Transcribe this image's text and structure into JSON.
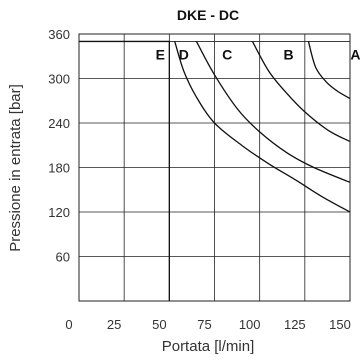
{
  "chart_data": {
    "type": "line",
    "title": "DKE - DC",
    "xlabel": "Portata [l/min]",
    "ylabel": "Pressione in entrata [bar]",
    "xlim": [
      0,
      150
    ],
    "ylim": [
      0,
      360
    ],
    "x_ticks": [
      0,
      25,
      50,
      75,
      100,
      125,
      150
    ],
    "y_ticks": [
      60,
      120,
      180,
      240,
      300,
      360
    ],
    "grid": true,
    "reference_line": {
      "y": 350
    },
    "series": [
      {
        "name": "A",
        "points": [
          [
            127,
            350
          ],
          [
            131,
            315
          ],
          [
            137,
            295
          ],
          [
            143,
            283
          ],
          [
            150,
            273
          ]
        ]
      },
      {
        "name": "B",
        "points": [
          [
            96,
            350
          ],
          [
            105,
            310
          ],
          [
            115,
            280
          ],
          [
            125,
            255
          ],
          [
            138,
            230
          ],
          [
            150,
            215
          ]
        ]
      },
      {
        "name": "C",
        "points": [
          [
            65,
            350
          ],
          [
            75,
            305
          ],
          [
            88,
            258
          ],
          [
            100,
            228
          ],
          [
            115,
            200
          ],
          [
            130,
            180
          ],
          [
            150,
            160
          ]
        ]
      },
      {
        "name": "D",
        "points": [
          [
            53,
            350
          ],
          [
            58,
            310
          ],
          [
            65,
            275
          ],
          [
            75,
            240
          ],
          [
            90,
            210
          ],
          [
            105,
            185
          ],
          [
            120,
            163
          ],
          [
            135,
            140
          ],
          [
            150,
            120
          ]
        ]
      },
      {
        "name": "E",
        "points": [
          [
            0,
            350
          ],
          [
            50,
            350
          ],
          [
            50,
            0
          ]
        ]
      }
    ],
    "curve_labels": [
      {
        "text": "E",
        "x": 45,
        "y": 334
      },
      {
        "text": "D",
        "x": 58,
        "y": 334
      },
      {
        "text": "C",
        "x": 82,
        "y": 334
      },
      {
        "text": "B",
        "x": 116,
        "y": 334
      },
      {
        "text": "A",
        "x": 153,
        "y": 334
      }
    ]
  }
}
